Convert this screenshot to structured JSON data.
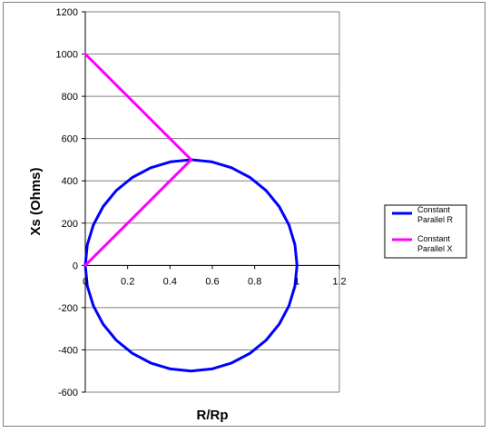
{
  "chart_data": {
    "type": "scatter",
    "xlabel": "R/Rp",
    "ylabel": "Xs (Ohms)",
    "xlim": [
      0,
      1.2
    ],
    "ylim": [
      -600,
      1200
    ],
    "xticks": [
      "0",
      "0.2",
      "0.4",
      "0.6",
      "0.8",
      "1",
      "1.2"
    ],
    "yticks": [
      "-600",
      "-400",
      "-200",
      "0",
      "200",
      "400",
      "600",
      "800",
      "1000",
      "1200"
    ],
    "grid": "horizontal",
    "legend_position": "right",
    "series": [
      {
        "name": "Constant Parallel R",
        "color": "#0000ff",
        "points": [
          [
            0,
            0
          ],
          [
            0.0096,
            98
          ],
          [
            0.038,
            191
          ],
          [
            0.084,
            278
          ],
          [
            0.146,
            354
          ],
          [
            0.222,
            416
          ],
          [
            0.309,
            462
          ],
          [
            0.402,
            490
          ],
          [
            0.5,
            500
          ],
          [
            0.598,
            490
          ],
          [
            0.691,
            462
          ],
          [
            0.778,
            416
          ],
          [
            0.854,
            354
          ],
          [
            0.916,
            278
          ],
          [
            0.962,
            191
          ],
          [
            0.99,
            98
          ],
          [
            1.0,
            0
          ],
          [
            0.99,
            -98
          ],
          [
            0.962,
            -191
          ],
          [
            0.916,
            -278
          ],
          [
            0.854,
            -354
          ],
          [
            0.778,
            -416
          ],
          [
            0.691,
            -462
          ],
          [
            0.598,
            -490
          ],
          [
            0.5,
            -500
          ],
          [
            0.402,
            -490
          ],
          [
            0.309,
            -462
          ],
          [
            0.222,
            -416
          ],
          [
            0.146,
            -354
          ],
          [
            0.084,
            -278
          ],
          [
            0.038,
            -191
          ],
          [
            0.0096,
            -98
          ],
          [
            0,
            0
          ]
        ]
      },
      {
        "name": "Constant Parallel X",
        "color": "#ff00ff",
        "points": [
          [
            0,
            0
          ],
          [
            0.0385,
            38.5
          ],
          [
            0.138,
            138
          ],
          [
            0.265,
            265
          ],
          [
            0.385,
            385
          ],
          [
            0.471,
            471
          ],
          [
            0.5,
            500
          ],
          [
            0.471,
            529
          ],
          [
            0.385,
            615
          ],
          [
            0.265,
            735
          ],
          [
            0.138,
            862
          ],
          [
            0.0385,
            962
          ],
          [
            0,
            1000
          ]
        ]
      }
    ]
  }
}
